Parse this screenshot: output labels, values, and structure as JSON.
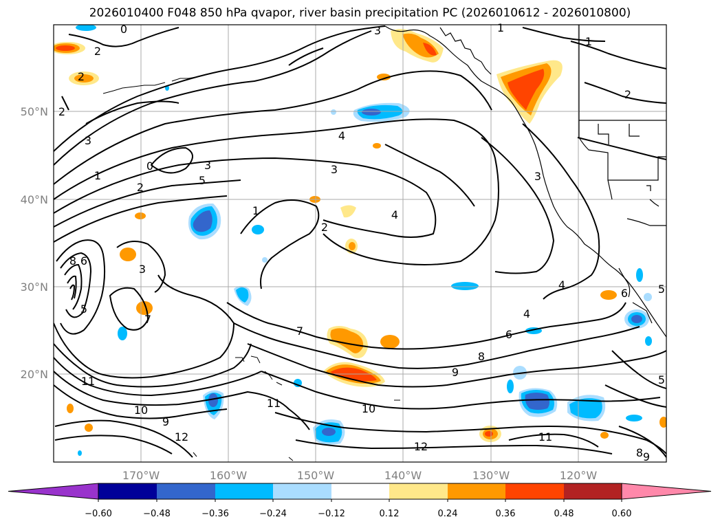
{
  "title": "2026010400 F048 850 hPa qvapor, river basin precipitation PC (2026010612 - 2026010800)",
  "map": {
    "lat_labels": [
      "50°N",
      "40°N",
      "30°N",
      "20°N"
    ],
    "lon_labels": [
      "170°W",
      "160°W",
      "150°W",
      "140°W",
      "130°W",
      "120°W"
    ],
    "contour_labels": [
      "0",
      "1",
      "2",
      "3",
      "2",
      "2",
      "3",
      "4",
      "3",
      "0",
      "1",
      "2",
      "3",
      "5",
      "1",
      "2",
      "4",
      "3",
      "8",
      "6",
      "3",
      "7",
      "4",
      "4",
      "6",
      "5",
      "7",
      "8",
      "9",
      "10",
      "11",
      "10",
      "9",
      "12",
      "11",
      "12",
      "11",
      "6",
      "5",
      "5",
      "1",
      "2",
      "9",
      "8"
    ]
  },
  "colorbar": {
    "tick_labels": [
      "−0.60",
      "−0.48",
      "−0.36",
      "−0.24",
      "−0.12",
      "0.12",
      "0.24",
      "0.36",
      "0.48",
      "0.60"
    ],
    "colors": [
      "#9933cc",
      "#000099",
      "#3366cc",
      "#00bbff",
      "#aaddff",
      "#ffffff",
      "#ffe88a",
      "#ff9900",
      "#ff4400",
      "#b22222",
      "#ff88aa"
    ]
  }
}
